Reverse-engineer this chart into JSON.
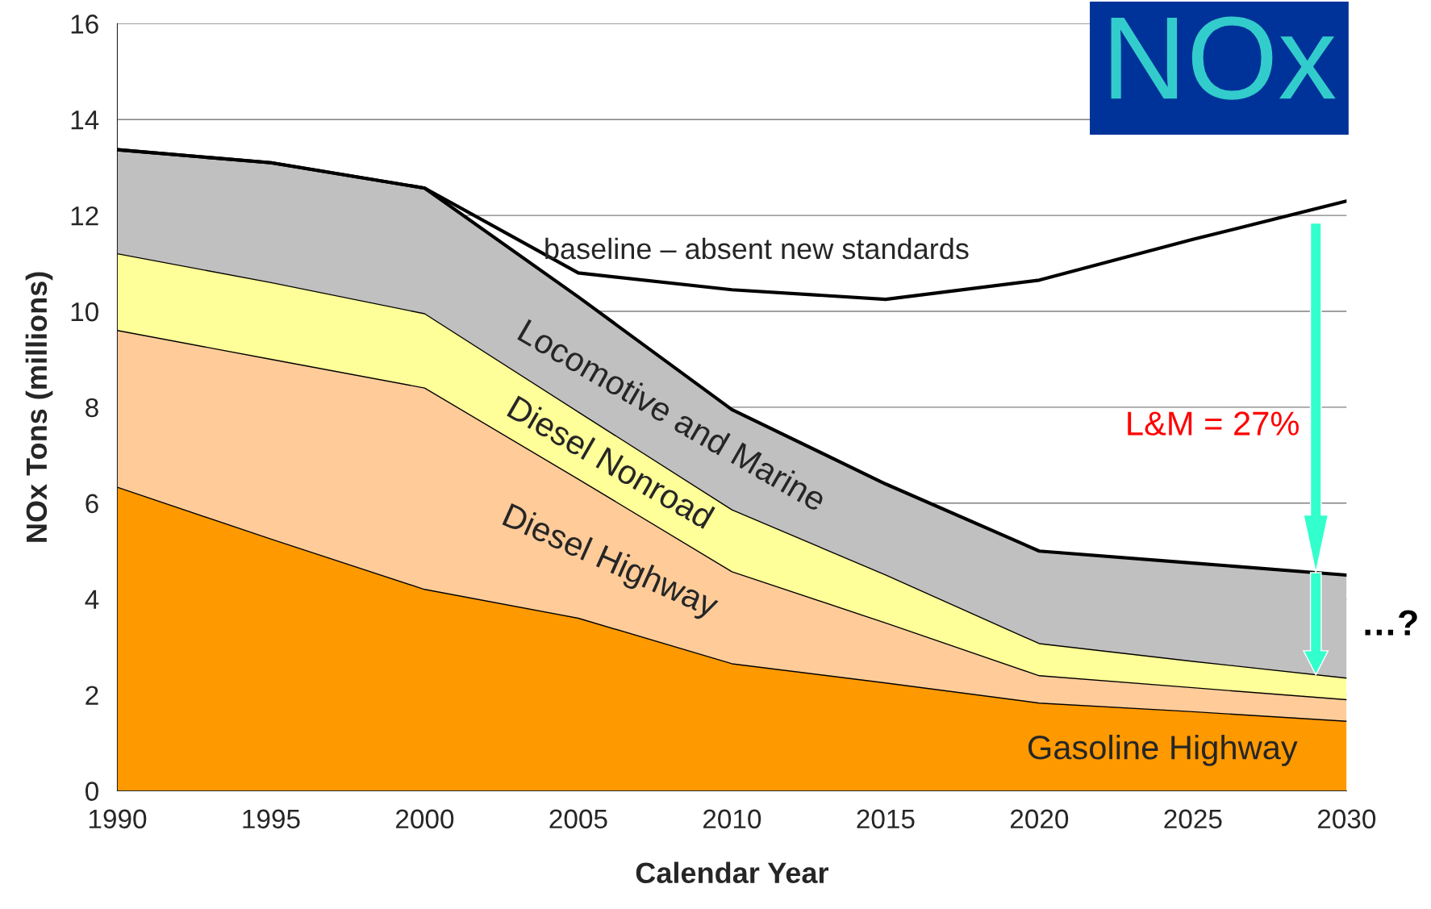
{
  "chart_data": {
    "type": "area",
    "stacked": true,
    "title": "NOx",
    "xlabel": "Calendar Year",
    "ylabel": "NOx Tons (millions)",
    "x": [
      1990,
      1995,
      2000,
      2005,
      2010,
      2015,
      2020,
      2025,
      2030
    ],
    "series": [
      {
        "name": "Gasoline Highway",
        "color": "#ff9900",
        "values": [
          6.33,
          5.25,
          4.2,
          3.6,
          2.65,
          2.25,
          1.83,
          1.65,
          1.45
        ]
      },
      {
        "name": "Diesel Highway",
        "color": "#ffcc99",
        "values": [
          3.27,
          3.75,
          4.2,
          2.9,
          1.92,
          1.25,
          0.57,
          0.5,
          0.45
        ]
      },
      {
        "name": "Diesel Nonroad",
        "color": "#ffff99",
        "values": [
          1.6,
          1.6,
          1.55,
          1.4,
          1.29,
          1.0,
          0.67,
          0.55,
          0.45
        ]
      },
      {
        "name": "Locomotive and Marine",
        "color": "#c0c0c0",
        "values": [
          2.17,
          2.5,
          2.62,
          2.4,
          2.09,
          1.9,
          1.93,
          2.05,
          2.15
        ]
      },
      {
        "name": "baseline – absent new standards",
        "type": "line",
        "color": "#000000",
        "values": [
          13.37,
          13.1,
          12.57,
          10.8,
          10.45,
          10.25,
          10.65,
          11.5,
          12.3
        ]
      }
    ],
    "xlim": [
      1990,
      2030
    ],
    "ylim": [
      0,
      16
    ],
    "xticks": [
      1990,
      1995,
      2000,
      2005,
      2010,
      2015,
      2020,
      2025,
      2030
    ],
    "yticks": [
      0,
      2,
      4,
      6,
      8,
      10,
      12,
      14,
      16
    ],
    "grid": "y",
    "legend": false,
    "annotations": [
      "L&M = 27%",
      "…?"
    ]
  }
}
